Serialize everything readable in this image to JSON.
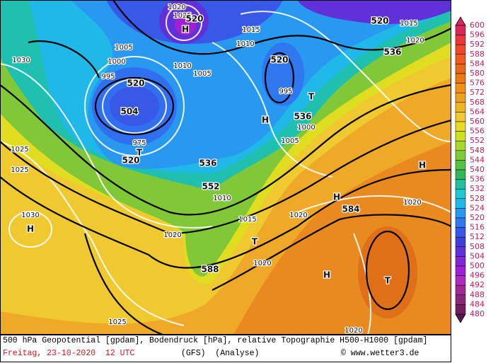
{
  "map": {
    "labels": [
      "1020",
      "1025",
      "520",
      "H",
      "1015",
      "1010",
      "1005",
      "1000",
      "995",
      "520",
      "504",
      "520",
      "T",
      "H",
      "536",
      "1030",
      "1025",
      "1025",
      "1030",
      "H",
      "975",
      "T",
      "520",
      "536",
      "552",
      "1010",
      "1015",
      "1020",
      "1020",
      "584",
      "H",
      "H",
      "T",
      "1020",
      "588",
      "H",
      "T",
      "1020",
      "1025",
      "1020",
      "520",
      "1015",
      "1020",
      "536",
      "995",
      "1000",
      "1005",
      "1005",
      "1010"
    ],
    "colorbar": {
      "levels": [
        600,
        596,
        592,
        588,
        584,
        580,
        576,
        572,
        568,
        564,
        560,
        556,
        552,
        548,
        544,
        540,
        536,
        532,
        528,
        524,
        520,
        516,
        512,
        508,
        504,
        500,
        496,
        492,
        488,
        484,
        480
      ],
      "colors": [
        "#d8285a",
        "#e83838",
        "#f04828",
        "#f05a20",
        "#e86818",
        "#e87a10",
        "#f09018",
        "#f0a020",
        "#f0b428",
        "#f0c830",
        "#e8dc20",
        "#d0e020",
        "#a8d830",
        "#80cc38",
        "#58c040",
        "#30b858",
        "#20c0a0",
        "#20c8d0",
        "#20b8e8",
        "#2898f0",
        "#3078f0",
        "#3858e8",
        "#4040d8",
        "#6030d8",
        "#8028d8",
        "#a020d8",
        "#b028c0",
        "#a02898",
        "#882878",
        "#702060",
        "#581850"
      ]
    }
  },
  "caption": {
    "line1": "500 hPa Geopotential [gpdam], Bodendruck [hPa], relative Topographie H500-H1000 [gpdam]",
    "date": "Freitag, 23-10-2020  12 UTC",
    "model": "(GFS)  (Analyse)",
    "credit": "© www.wetter3.de"
  }
}
